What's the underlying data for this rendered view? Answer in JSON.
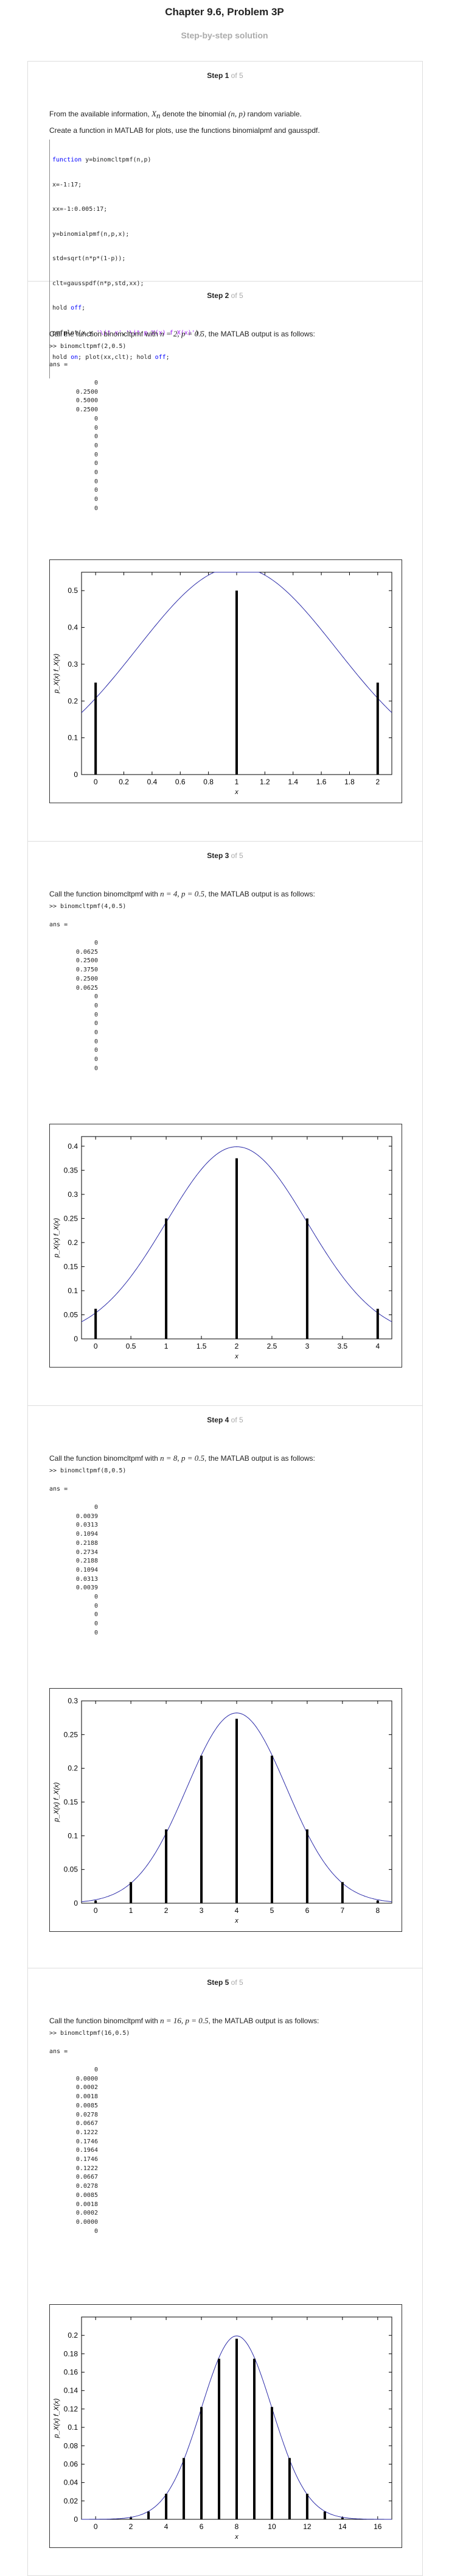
{
  "header": {
    "title": "Chapter 9.6, Problem 3P",
    "subtitle": "Step-by-step solution"
  },
  "step_of": "of",
  "steps": [
    {
      "num": "1",
      "total": "5",
      "intro_pre": "From the available information,",
      "intro_var": "X",
      "intro_sub": "n",
      "intro_post": "denote the binomial",
      "intro_param": "(n, p)",
      "intro_end": "random variable.",
      "line2": "Create a function in MATLAB for plots, use the functions binomialpmf and gausspdf.",
      "code": [
        {
          "kw": "function",
          "rest": " y=binomcltpmf(n,p)"
        },
        {
          "kw": "",
          "rest": "x=-1:17;"
        },
        {
          "kw": "",
          "rest": "xx=-1:0.005:17;"
        },
        {
          "kw": "",
          "rest": "y=binomialpmf(n,p,x);"
        },
        {
          "kw": "",
          "rest": "std=sqrt(n*p*(1-p));"
        },
        {
          "kw": "",
          "rest": "clt=gausspdf(n*p,std,xx);"
        },
        {
          "kw": "",
          "rest": "hold off;"
        },
        {
          "kw": "",
          "rest": "pmfplot(x,y,'\\it x','\\it p_X(x) f_X(x)');"
        },
        {
          "kw": "",
          "rest": "hold on; plot(xx,clt); hold off;"
        }
      ]
    },
    {
      "num": "2",
      "total": "5",
      "call": "Call the function binomcltpmf with",
      "n_text": "n = 2,",
      "p_text": "p = 0.5",
      "after": ", the MATLAB output is as follows:",
      "command": ">> binomcltpmf(2,0.5)",
      "ans": "ans =",
      "values": [
        "0",
        "0.2500",
        "0.5000",
        "0.2500",
        "0",
        "0",
        "0",
        "0",
        "0",
        "0",
        "0",
        "0",
        "0",
        "0",
        "0"
      ]
    },
    {
      "num": "3",
      "total": "5",
      "call": "Call the function binomcltpmf with",
      "n_text": "n = 4,",
      "p_text": "p = 0.5",
      "after": ", the MATLAB output is as follows:",
      "command": ">> binomcltpmf(4,0.5)",
      "ans": "ans =",
      "values": [
        "0",
        "0.0625",
        "0.2500",
        "0.3750",
        "0.2500",
        "0.0625",
        "0",
        "0",
        "0",
        "0",
        "0",
        "0",
        "0",
        "0",
        "0"
      ]
    },
    {
      "num": "4",
      "total": "5",
      "call": "Call the function binomcltpmf with",
      "n_text": "n = 8,",
      "p_text": "p = 0.5",
      "after": ", the MATLAB output is as follows:",
      "command": ">> binomcltpmf(8,0.5)",
      "ans": "ans =",
      "values": [
        "0",
        "0.0039",
        "0.0313",
        "0.1094",
        "0.2188",
        "0.2734",
        "0.2188",
        "0.1094",
        "0.0313",
        "0.0039",
        "0",
        "0",
        "0",
        "0",
        "0"
      ]
    },
    {
      "num": "5",
      "total": "5",
      "call": "Call the function binomcltpmf with",
      "n_text": "n = 16,",
      "p_text": "p = 0.5",
      "after": ", the MATLAB output is as follows:",
      "command": ">> binomcltpmf(16,0.5)",
      "ans": "ans =",
      "values": [
        "0",
        "0.0000",
        "0.0002",
        "0.0018",
        "0.0085",
        "0.0278",
        "0.0667",
        "0.1222",
        "0.1746",
        "0.1964",
        "0.1746",
        "0.1222",
        "0.0667",
        "0.0278",
        "0.0085",
        "0.0018",
        "0.0002",
        "0.0000",
        "0"
      ]
    }
  ],
  "chart_data": [
    {
      "type": "bar",
      "xlabel": "x",
      "ylabel": "p_X(x) f_X(x)",
      "x": [
        0,
        1,
        2
      ],
      "values": [
        0.25,
        0.5,
        0.25
      ],
      "xlim": [
        -0.1,
        2.1
      ],
      "ylim": [
        0,
        0.55
      ],
      "xticks": [
        "0",
        "0.2",
        "0.4",
        "0.6",
        "0.8",
        "1",
        "1.2",
        "1.4",
        "1.6",
        "1.8",
        "2"
      ],
      "yticks": [
        "0",
        "0.1",
        "0.2",
        "0.3",
        "0.4",
        "0.5"
      ],
      "curve": {
        "mean": 1,
        "std": 0.7071
      }
    },
    {
      "type": "bar",
      "xlabel": "x",
      "ylabel": "p_X(x) f_X(x)",
      "x": [
        0,
        1,
        2,
        3,
        4
      ],
      "values": [
        0.0625,
        0.25,
        0.375,
        0.25,
        0.0625
      ],
      "xlim": [
        -0.2,
        4.2
      ],
      "ylim": [
        0,
        0.42
      ],
      "xticks": [
        "0",
        "0.5",
        "1",
        "1.5",
        "2",
        "2.5",
        "3",
        "3.5",
        "4"
      ],
      "yticks": [
        "0",
        "0.05",
        "0.1",
        "0.15",
        "0.2",
        "0.25",
        "0.3",
        "0.35",
        "0.4"
      ],
      "curve": {
        "mean": 2,
        "std": 1
      }
    },
    {
      "type": "bar",
      "xlabel": "x",
      "ylabel": "p_X(x) f_X(x)",
      "x": [
        0,
        1,
        2,
        3,
        4,
        5,
        6,
        7,
        8
      ],
      "values": [
        0.0039,
        0.0313,
        0.1094,
        0.2188,
        0.2734,
        0.2188,
        0.1094,
        0.0313,
        0.0039
      ],
      "xlim": [
        -0.4,
        8.4
      ],
      "ylim": [
        0,
        0.3
      ],
      "xticks": [
        "0",
        "1",
        "2",
        "3",
        "4",
        "5",
        "6",
        "7",
        "8"
      ],
      "yticks": [
        "0",
        "0.05",
        "0.1",
        "0.15",
        "0.2",
        "0.25",
        "0.3"
      ],
      "curve": {
        "mean": 4,
        "std": 1.4142
      }
    },
    {
      "type": "bar",
      "xlabel": "x",
      "ylabel": "p_X(x) f_X(x)",
      "x": [
        0,
        1,
        2,
        3,
        4,
        5,
        6,
        7,
        8,
        9,
        10,
        11,
        12,
        13,
        14,
        15,
        16
      ],
      "values": [
        0.0,
        0.0002,
        0.0018,
        0.0085,
        0.0278,
        0.0667,
        0.1222,
        0.1746,
        0.1964,
        0.1746,
        0.1222,
        0.0667,
        0.0278,
        0.0085,
        0.0018,
        0.0002,
        0.0
      ],
      "xlim": [
        -0.8,
        16.8
      ],
      "ylim": [
        0,
        0.22
      ],
      "xticks": [
        "0",
        "2",
        "4",
        "6",
        "8",
        "10",
        "12",
        "14",
        "16"
      ],
      "yticks": [
        "0",
        "0.02",
        "0.04",
        "0.06",
        "0.08",
        "0.1",
        "0.12",
        "0.14",
        "0.16",
        "0.18",
        "0.2"
      ],
      "curve": {
        "mean": 8,
        "std": 2
      }
    }
  ]
}
